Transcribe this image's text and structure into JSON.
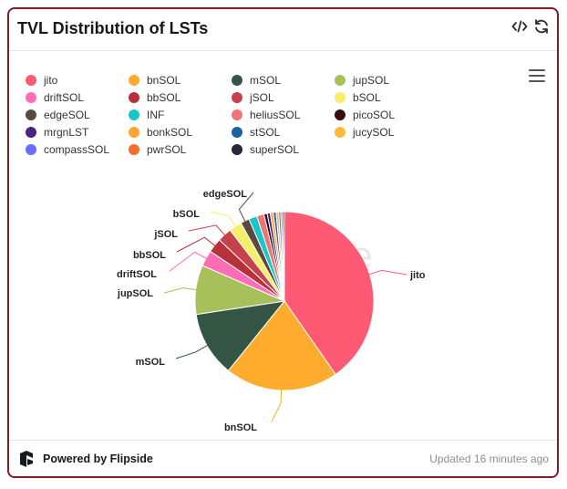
{
  "header": {
    "title": "TVL Distribution of LSTs",
    "embed_icon": "code-icon",
    "refresh_icon": "refresh-icon"
  },
  "menu": {
    "icon": "hamburger-menu-icon"
  },
  "footer": {
    "brand_label": "Powered by Flipside",
    "brand_icon": "flipside-logo-icon",
    "updated": "Updated 16 minutes ago"
  },
  "watermark": "flipside",
  "chart_data": {
    "type": "pie",
    "title": "",
    "slices": [
      {
        "name": "jito",
        "value": 40.3,
        "color": "#ff5a74",
        "labeled": true
      },
      {
        "name": "bnSOL",
        "value": 20.5,
        "color": "#ffab2e",
        "labeled": true
      },
      {
        "name": "mSOL",
        "value": 11.8,
        "color": "#345444",
        "labeled": true
      },
      {
        "name": "jupSOL",
        "value": 8.9,
        "color": "#a8c05a",
        "labeled": true
      },
      {
        "name": "driftSOL",
        "value": 2.9,
        "color": "#ff6eb4",
        "labeled": true
      },
      {
        "name": "bbSOL",
        "value": 2.6,
        "color": "#b7303a",
        "labeled": true
      },
      {
        "name": "jSOL",
        "value": 2.6,
        "color": "#c6414a",
        "labeled": true
      },
      {
        "name": "bSOL",
        "value": 2.3,
        "color": "#f5ef6a",
        "labeled": true
      },
      {
        "name": "edgeSOL",
        "value": 1.6,
        "color": "#5a4a3e",
        "labeled": true
      },
      {
        "name": "INF",
        "value": 1.5,
        "color": "#18c5c9",
        "labeled": false
      },
      {
        "name": "heliusSOL",
        "value": 1.3,
        "color": "#ef7474",
        "labeled": false
      },
      {
        "name": "picoSOL",
        "value": 0.6,
        "color": "#3a0b10",
        "labeled": false
      },
      {
        "name": "mrgnLST",
        "value": 0.55,
        "color": "#4b2183",
        "labeled": false
      },
      {
        "name": "bonkSOL",
        "value": 0.55,
        "color": "#ffa534",
        "labeled": false
      },
      {
        "name": "stSOL",
        "value": 0.5,
        "color": "#1d5fa3",
        "labeled": false
      },
      {
        "name": "jucySOL",
        "value": 0.45,
        "color": "#ffba3c",
        "labeled": false
      },
      {
        "name": "compassSOL",
        "value": 0.4,
        "color": "#6a6dff",
        "labeled": false
      },
      {
        "name": "pwrSOL",
        "value": 0.35,
        "color": "#f76d2c",
        "labeled": false
      },
      {
        "name": "superSOL",
        "value": 0.3,
        "color": "#24283a",
        "labeled": false
      }
    ],
    "legend_placement": "top",
    "legend": [
      {
        "name": "jito",
        "color": "#ff5a74"
      },
      {
        "name": "bnSOL",
        "color": "#ffab2e"
      },
      {
        "name": "mSOL",
        "color": "#345444"
      },
      {
        "name": "jupSOL",
        "color": "#a8c05a"
      },
      {
        "name": "driftSOL",
        "color": "#ff6eb4"
      },
      {
        "name": "bbSOL",
        "color": "#b7303a"
      },
      {
        "name": "jSOL",
        "color": "#c6414a"
      },
      {
        "name": "bSOL",
        "color": "#f5ef6a"
      },
      {
        "name": "edgeSOL",
        "color": "#5a4a3e"
      },
      {
        "name": "INF",
        "color": "#18c5c9"
      },
      {
        "name": "heliusSOL",
        "color": "#ef7474"
      },
      {
        "name": "picoSOL",
        "color": "#3a0b10"
      },
      {
        "name": "mrgnLST",
        "color": "#4b2183"
      },
      {
        "name": "bonkSOL",
        "color": "#ffa534"
      },
      {
        "name": "stSOL",
        "color": "#1d5fa3"
      },
      {
        "name": "jucySOL",
        "color": "#ffba3c"
      },
      {
        "name": "compassSOL",
        "color": "#6a6dff"
      },
      {
        "name": "pwrSOL",
        "color": "#f76d2c"
      },
      {
        "name": "superSOL",
        "color": "#24283a"
      }
    ]
  }
}
